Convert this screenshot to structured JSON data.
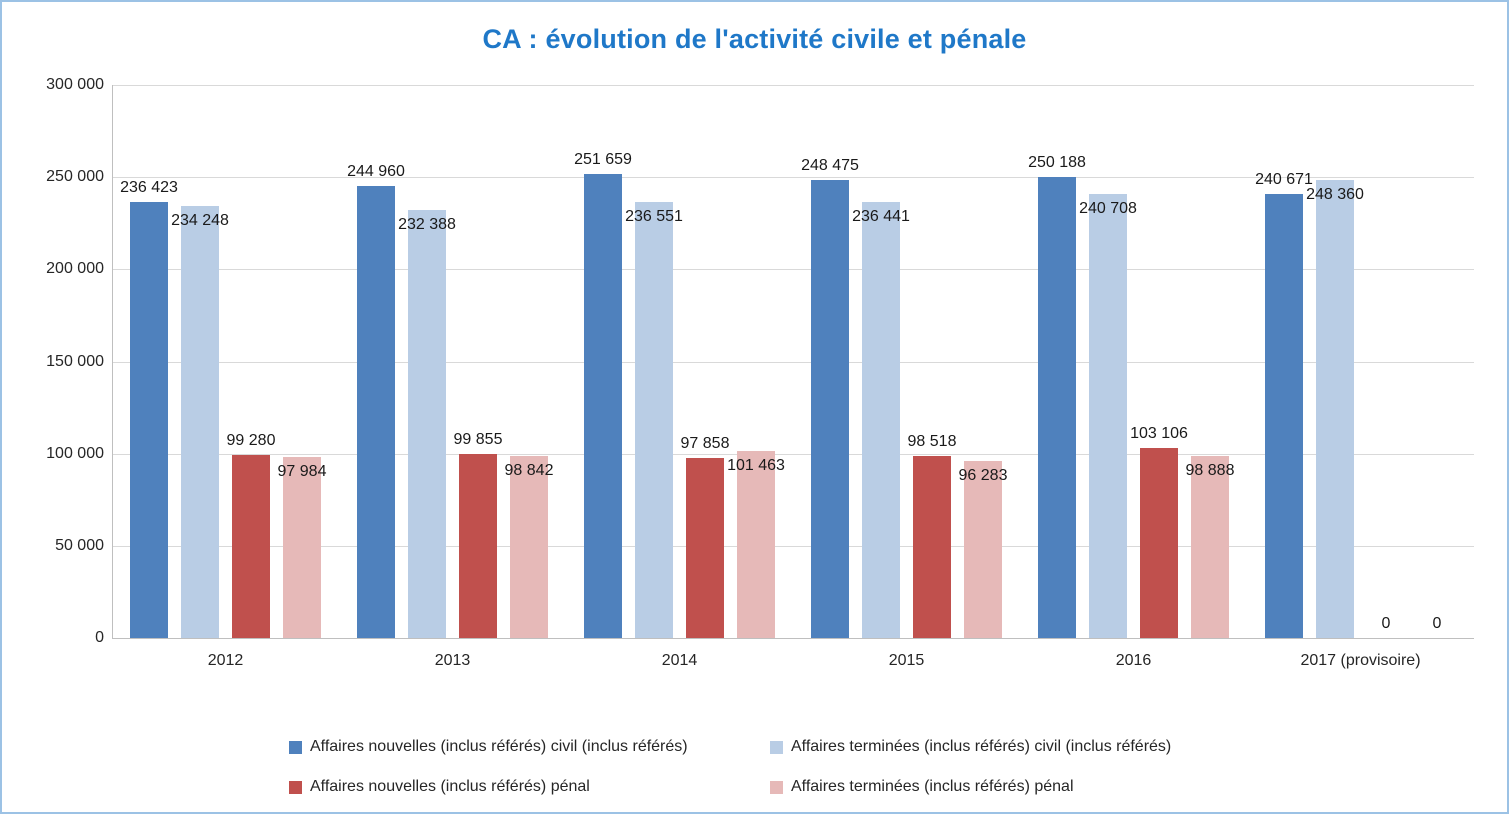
{
  "chart_data": {
    "type": "bar",
    "title": "CA : évolution de l'activité civile et pénale",
    "categories": [
      "2012",
      "2013",
      "2014",
      "2015",
      "2016",
      "2017 (provisoire)"
    ],
    "series": [
      {
        "name": "Affaires nouvelles (inclus référés) civil (inclus référés)",
        "color": "#4F81BD",
        "label_position": "outside",
        "values": [
          236423,
          244960,
          251659,
          248475,
          250188,
          240671
        ]
      },
      {
        "name": "Affaires terminées (inclus référés) civil (inclus référés)",
        "color": "#B9CDE5",
        "label_position": "inside",
        "values": [
          234248,
          232388,
          236551,
          236441,
          240708,
          248360
        ]
      },
      {
        "name": "Affaires nouvelles (inclus référés) pénal",
        "color": "#C0504D",
        "label_position": "outside",
        "values": [
          99280,
          99855,
          97858,
          98518,
          103106,
          0
        ]
      },
      {
        "name": "Affaires terminées (inclus référés) pénal",
        "color": "#E6B9B8",
        "label_position": "inside",
        "values": [
          97984,
          98842,
          101463,
          96283,
          98888,
          0
        ]
      }
    ],
    "ylim": [
      0,
      300000
    ],
    "ytick_step": 50000,
    "ytick_labels": [
      "300 000",
      "250 000",
      "200 000",
      "150 000",
      "100 000",
      "50 000",
      "0"
    ],
    "grid": true,
    "legend_position": "bottom"
  },
  "styles": {
    "title_color": "#1F78C8",
    "grid_color": "#D9D9D9",
    "axis_color": "#BFBFBF",
    "border_color": "#9CC2E5",
    "label_color": "#1A1A1A"
  }
}
